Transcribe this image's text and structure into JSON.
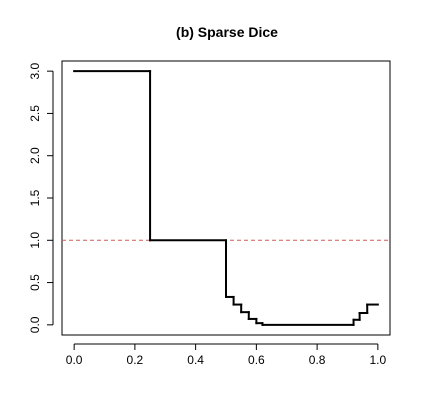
{
  "chart_data": {
    "type": "line",
    "title": "(b)  Sparse Dice",
    "xlabel": "",
    "ylabel": "",
    "xlim": [
      -0.04,
      1.04
    ],
    "ylim": [
      -0.12,
      3.12
    ],
    "x_ticks": [
      "0.0",
      "0.2",
      "0.4",
      "0.6",
      "0.8",
      "1.0"
    ],
    "y_ticks": [
      "0.0",
      "0.5",
      "1.0",
      "1.5",
      "2.0",
      "2.5",
      "3.0"
    ],
    "grid": false,
    "series": [
      {
        "style": "step",
        "color": "#000000",
        "points": [
          [
            0.0,
            3.0
          ],
          [
            0.25,
            3.0
          ],
          [
            0.25,
            1.0
          ],
          [
            0.5,
            1.0
          ],
          [
            0.5,
            0.33
          ],
          [
            0.525,
            0.33
          ],
          [
            0.525,
            0.24
          ],
          [
            0.55,
            0.24
          ],
          [
            0.55,
            0.15
          ],
          [
            0.575,
            0.15
          ],
          [
            0.575,
            0.07
          ],
          [
            0.6,
            0.07
          ],
          [
            0.6,
            0.02
          ],
          [
            0.62,
            0.02
          ],
          [
            0.62,
            0.0
          ],
          [
            0.92,
            0.0
          ],
          [
            0.92,
            0.06
          ],
          [
            0.94,
            0.06
          ],
          [
            0.94,
            0.14
          ],
          [
            0.965,
            0.14
          ],
          [
            0.965,
            0.24
          ],
          [
            1.0,
            0.24
          ]
        ]
      }
    ],
    "reference_line": {
      "y": 1.0,
      "color": "#cd5c5c",
      "style": "dashed"
    }
  }
}
